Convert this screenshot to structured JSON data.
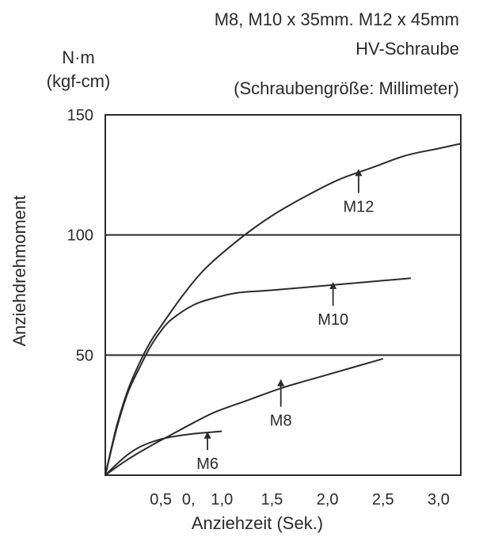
{
  "chart_data": {
    "type": "line",
    "title_lines": [
      "M8, M10 x 35mm. M12 x 45mm",
      "HV-Schraube",
      "(Schraubengröße: Millimeter)"
    ],
    "unit_lines": [
      "N·m",
      "(kgf-cm)"
    ],
    "xlabel": "Anziehzeit (Sek.)",
    "ylabel": "Anziehdrehmoment",
    "xlim": [
      0,
      3.2
    ],
    "ylim": [
      0,
      150
    ],
    "x_tick_labels": [
      "0,5",
      "0,",
      "1,0",
      "1,5",
      "2,0",
      "2,5",
      "3,0"
    ],
    "x_tick_values": [
      0.5,
      0.75,
      1.05,
      1.5,
      2.0,
      2.5,
      3.0
    ],
    "y_ticks": [
      50,
      100,
      150
    ],
    "y_tick_labels": [
      "50",
      "100",
      "150"
    ],
    "gridlines_y": [
      50,
      100
    ],
    "series": [
      {
        "name": "M12",
        "x": [
          0,
          0.1,
          0.2,
          0.3,
          0.4,
          0.5,
          0.7,
          0.9,
          1.2,
          1.5,
          1.8,
          2.1,
          2.4,
          2.7,
          3.0,
          3.2
        ],
        "y": [
          0,
          20,
          35,
          46,
          55,
          62,
          75,
          86,
          98,
          108,
          116,
          123,
          128,
          133,
          136,
          138
        ]
      },
      {
        "name": "M10",
        "x": [
          0,
          0.1,
          0.2,
          0.3,
          0.4,
          0.5,
          0.6,
          0.8,
          1.0,
          1.2,
          1.5,
          2.0,
          2.5,
          2.75
        ],
        "y": [
          0,
          19,
          34,
          44,
          53,
          60,
          65,
          71,
          74,
          76,
          77,
          79,
          81,
          82
        ]
      },
      {
        "name": "M8",
        "x": [
          0,
          0.2,
          0.4,
          0.6,
          0.8,
          1.0,
          1.3,
          1.6,
          1.9,
          2.2,
          2.5
        ],
        "y": [
          0,
          6.5,
          12,
          17,
          22,
          26.5,
          31.5,
          36.5,
          40.5,
          44.5,
          48.5
        ]
      },
      {
        "name": "M6",
        "x": [
          0,
          0.1,
          0.2,
          0.3,
          0.4,
          0.5,
          0.6,
          0.8,
          1.05
        ],
        "y": [
          0,
          4.5,
          8.5,
          11.5,
          13.5,
          15,
          16,
          17.3,
          18.3
        ]
      }
    ],
    "annotations": [
      {
        "text": "M12",
        "arrow_tip": [
          2.28,
          127.5
        ],
        "arrow_tail": [
          2.28,
          117.5
        ]
      },
      {
        "text": "M10",
        "arrow_tip": [
          2.05,
          80.5
        ],
        "arrow_tail": [
          2.05,
          70.5
        ]
      },
      {
        "text": "M8",
        "arrow_tip": [
          1.58,
          40.0
        ],
        "arrow_tail": [
          1.58,
          28.5
        ]
      },
      {
        "text": "M6",
        "arrow_tip": [
          0.92,
          18.2
        ],
        "arrow_tail": [
          0.92,
          10.5
        ]
      }
    ],
    "grid": false,
    "legend": "none"
  }
}
